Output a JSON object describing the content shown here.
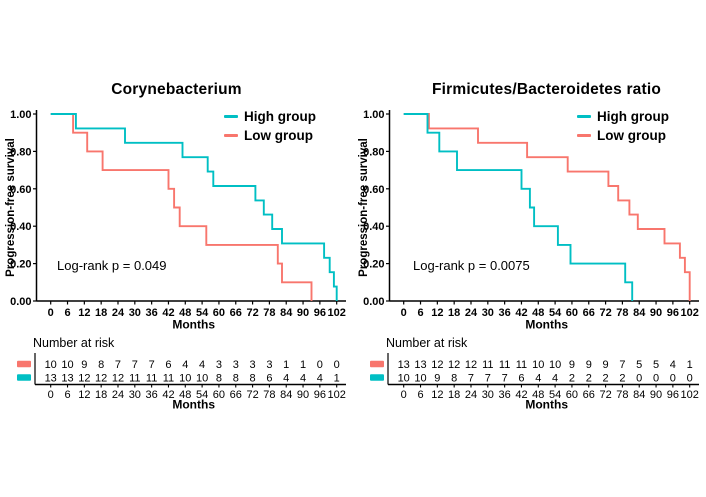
{
  "page": {
    "background": "#ffffff"
  },
  "colors": {
    "high_group": "#00BFC4",
    "low_group": "#F8766D",
    "axis": "#000000",
    "tick_text": "#1a1a1a"
  },
  "chart_data": [
    {
      "type": "line",
      "subtype": "kaplan-meier-step",
      "title": "Corynebacterium",
      "xlabel": "Months",
      "ylabel": "Progression-free survival",
      "annotation": "Log-rank p = 0.049",
      "legend_position": "top-right-inside",
      "grid": false,
      "xlim": [
        0,
        102
      ],
      "ylim": [
        0,
        1
      ],
      "x_ticks": [
        0,
        6,
        12,
        18,
        24,
        30,
        36,
        42,
        48,
        54,
        60,
        66,
        72,
        78,
        84,
        90,
        96,
        102
      ],
      "y_ticks": [
        "0.00",
        "0.20",
        "0.40",
        "0.60",
        "0.80",
        "1.00"
      ],
      "series": [
        {
          "name": "High group",
          "color": "#00BFC4",
          "steps": [
            [
              0,
              1.0
            ],
            [
              9,
              0.923
            ],
            [
              26.5,
              0.846
            ],
            [
              47,
              0.769
            ],
            [
              56,
              0.692
            ],
            [
              58,
              0.615
            ],
            [
              73,
              0.538
            ],
            [
              76,
              0.462
            ],
            [
              79,
              0.385
            ],
            [
              82.5,
              0.308
            ],
            [
              97.5,
              0.231
            ],
            [
              99.5,
              0.154
            ],
            [
              101,
              0.077
            ],
            [
              102,
              0
            ]
          ]
        },
        {
          "name": "Low group",
          "color": "#F8766D",
          "steps": [
            [
              0,
              1.0
            ],
            [
              8,
              0.9
            ],
            [
              13,
              0.8
            ],
            [
              18.5,
              0.7
            ],
            [
              42,
              0.6
            ],
            [
              44,
              0.5
            ],
            [
              46,
              0.4
            ],
            [
              55.5,
              0.3
            ],
            [
              81,
              0.2
            ],
            [
              82.5,
              0.1
            ],
            [
              93,
              0
            ]
          ]
        }
      ],
      "number_at_risk": {
        "label": "Number at risk",
        "xlabel": "Months",
        "times": [
          0,
          6,
          12,
          18,
          24,
          30,
          36,
          42,
          48,
          54,
          60,
          66,
          72,
          78,
          84,
          90,
          96,
          102
        ],
        "rows": [
          {
            "series": "Low group",
            "color": "#F8766D",
            "counts": [
              10,
              10,
              9,
              8,
              7,
              7,
              7,
              6,
              4,
              4,
              3,
              3,
              3,
              3,
              1,
              1,
              0,
              0
            ]
          },
          {
            "series": "High group",
            "color": "#00BFC4",
            "counts": [
              13,
              13,
              12,
              12,
              12,
              11,
              11,
              11,
              10,
              10,
              8,
              8,
              8,
              6,
              4,
              4,
              4,
              1
            ]
          }
        ]
      }
    },
    {
      "type": "line",
      "subtype": "kaplan-meier-step",
      "title": "Firmicutes/Bacteroidetes ratio",
      "xlabel": "Months",
      "ylabel": "Progression-free survival",
      "annotation": "Log-rank p = 0.0075",
      "legend_position": "top-right-inside",
      "grid": false,
      "xlim": [
        0,
        102
      ],
      "ylim": [
        0,
        1
      ],
      "x_ticks": [
        0,
        6,
        12,
        18,
        24,
        30,
        36,
        42,
        48,
        54,
        60,
        66,
        72,
        78,
        84,
        90,
        96,
        102
      ],
      "y_ticks": [
        "0.00",
        "0.20",
        "0.40",
        "0.60",
        "0.80",
        "1.00"
      ],
      "series": [
        {
          "name": "High group",
          "color": "#00BFC4",
          "steps": [
            [
              0,
              1.0
            ],
            [
              8.5,
              0.9
            ],
            [
              12.7,
              0.8
            ],
            [
              19,
              0.7
            ],
            [
              42,
              0.6
            ],
            [
              45,
              0.5
            ],
            [
              46.5,
              0.4
            ],
            [
              55,
              0.3
            ],
            [
              59.5,
              0.2
            ],
            [
              79,
              0.1
            ],
            [
              81.5,
              0
            ]
          ]
        },
        {
          "name": "Low group",
          "color": "#F8766D",
          "steps": [
            [
              0,
              1.0
            ],
            [
              9,
              0.923
            ],
            [
              26.5,
              0.846
            ],
            [
              44,
              0.769
            ],
            [
              58.5,
              0.692
            ],
            [
              73,
              0.615
            ],
            [
              76.5,
              0.538
            ],
            [
              80.5,
              0.462
            ],
            [
              83.5,
              0.385
            ],
            [
              93,
              0.308
            ],
            [
              98.5,
              0.231
            ],
            [
              100.3,
              0.154
            ],
            [
              102,
              0
            ]
          ]
        }
      ],
      "number_at_risk": {
        "label": "Number at risk",
        "xlabel": "Months",
        "times": [
          0,
          6,
          12,
          18,
          24,
          30,
          36,
          42,
          48,
          54,
          60,
          66,
          72,
          78,
          84,
          90,
          96,
          102
        ],
        "rows": [
          {
            "series": "Low group",
            "color": "#F8766D",
            "counts": [
              13,
              13,
              12,
              12,
              12,
              11,
              11,
              11,
              10,
              10,
              9,
              9,
              9,
              7,
              5,
              5,
              4,
              1
            ]
          },
          {
            "series": "High group",
            "color": "#00BFC4",
            "counts": [
              10,
              10,
              9,
              8,
              7,
              7,
              7,
              6,
              4,
              4,
              2,
              2,
              2,
              2,
              0,
              0,
              0,
              0
            ]
          }
        ]
      }
    }
  ]
}
